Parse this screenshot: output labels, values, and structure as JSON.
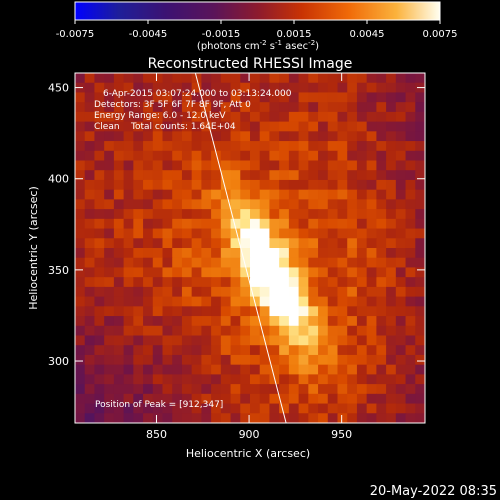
{
  "chart_data": {
    "type": "heatmap",
    "title": "Reconstructed RHESSI Image",
    "xlabel": "Heliocentric X (arcsec)",
    "ylabel": "Heliocentric Y (arcsec)",
    "xlim": [
      806,
      995
    ],
    "ylim": [
      266,
      458
    ],
    "x_ticks": [
      850,
      900,
      950
    ],
    "y_ticks": [
      300,
      350,
      400,
      450
    ],
    "colorbar": {
      "range": [
        -0.0075,
        0.0075
      ],
      "ticks": [
        "-0.0075",
        "-0.0045",
        "-0.0015",
        "0.0015",
        "0.0045",
        "0.0075"
      ],
      "unit_prefix": "(photons cm",
      "unit_exp1": "-2",
      "unit_mid": " s",
      "unit_exp2": "-1",
      "unit_mid2": " asec",
      "unit_exp3": "-2",
      "unit_suffix": ")"
    },
    "annotations": [
      "6-Apr-2015 03:07:24.000 to 03:13:24.000",
      "Detectors: 3F 5F 6F 7F 8F 9F, Att 0",
      "Energy Range: 6.0 - 12.0 keV",
      "Clean    Total counts: 1.64E+04"
    ],
    "peak_label": "Position of Peak = [912,347]",
    "peak": [
      912,
      347
    ],
    "limb_line": [
      [
        871,
        458
      ],
      [
        920,
        266
      ]
    ]
  },
  "footer_timestamp": "20-May-2022 08:35",
  "colors": {
    "background": "#000000",
    "axes": "#ffffff",
    "palette": [
      "#0000ff",
      "#1e1e9a",
      "#3c1272",
      "#55145c",
      "#6e1448",
      "#8c1a2e",
      "#b0280c",
      "#d84a00",
      "#f07c0c",
      "#fbb23c",
      "#ffe68c",
      "#ffffff"
    ]
  }
}
